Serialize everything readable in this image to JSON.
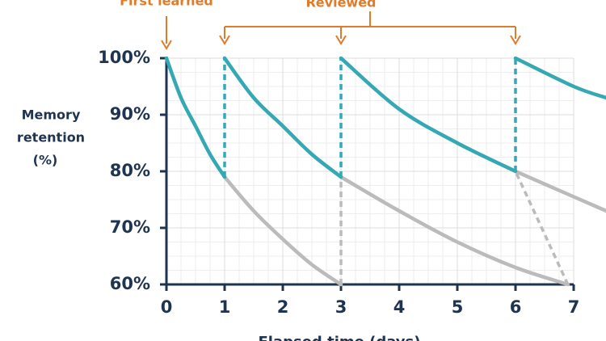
{
  "chart_data": {
    "type": "line",
    "ylabel": [
      "Memory",
      "retention",
      "(%)"
    ],
    "xlabel": "Elapsed time (days)",
    "xlim": [
      0,
      7
    ],
    "ylim": [
      60,
      100
    ],
    "xticks": [
      0,
      1,
      2,
      3,
      4,
      5,
      6,
      7
    ],
    "yticks": [
      {
        "value": 60,
        "label": "60%"
      },
      {
        "value": 70,
        "label": "70%"
      },
      {
        "value": 80,
        "label": "80%"
      },
      {
        "value": 90,
        "label": "90%"
      },
      {
        "value": 100,
        "label": "100%"
      }
    ],
    "grid": true,
    "minor_grid": 4,
    "annotations": [
      {
        "text": "First learned",
        "x": [
          0
        ]
      },
      {
        "text": "Reviewed",
        "x": [
          1,
          3,
          6
        ]
      }
    ],
    "series": [
      {
        "color": "#bbbbbb",
        "x": [
          1,
          1.5,
          2,
          2.5,
          3
        ],
        "values": [
          79,
          73,
          68,
          63.5,
          60
        ]
      },
      {
        "color": "#bbbbbb",
        "x": [
          3,
          4,
          5,
          6,
          6.9
        ],
        "values": [
          79,
          73,
          67.5,
          63,
          60
        ]
      },
      {
        "color": "#bbbbbb",
        "x": [
          6,
          7,
          7.56
        ],
        "values": [
          80,
          75.5,
          73
        ]
      },
      {
        "color": "#35a9b3",
        "x": [
          0,
          0.25,
          0.5,
          0.75,
          1
        ],
        "values": [
          100,
          93,
          88,
          83,
          79
        ]
      },
      {
        "color": "#35a9b3",
        "x": [
          1,
          1.5,
          2,
          2.5,
          3
        ],
        "values": [
          100,
          93,
          88,
          83,
          79
        ]
      },
      {
        "color": "#35a9b3",
        "x": [
          3,
          4,
          5,
          6
        ],
        "values": [
          100,
          91,
          85,
          80
        ]
      },
      {
        "color": "#35a9b3",
        "x": [
          6,
          7,
          7.56
        ],
        "values": [
          100,
          95,
          93
        ]
      }
    ]
  }
}
